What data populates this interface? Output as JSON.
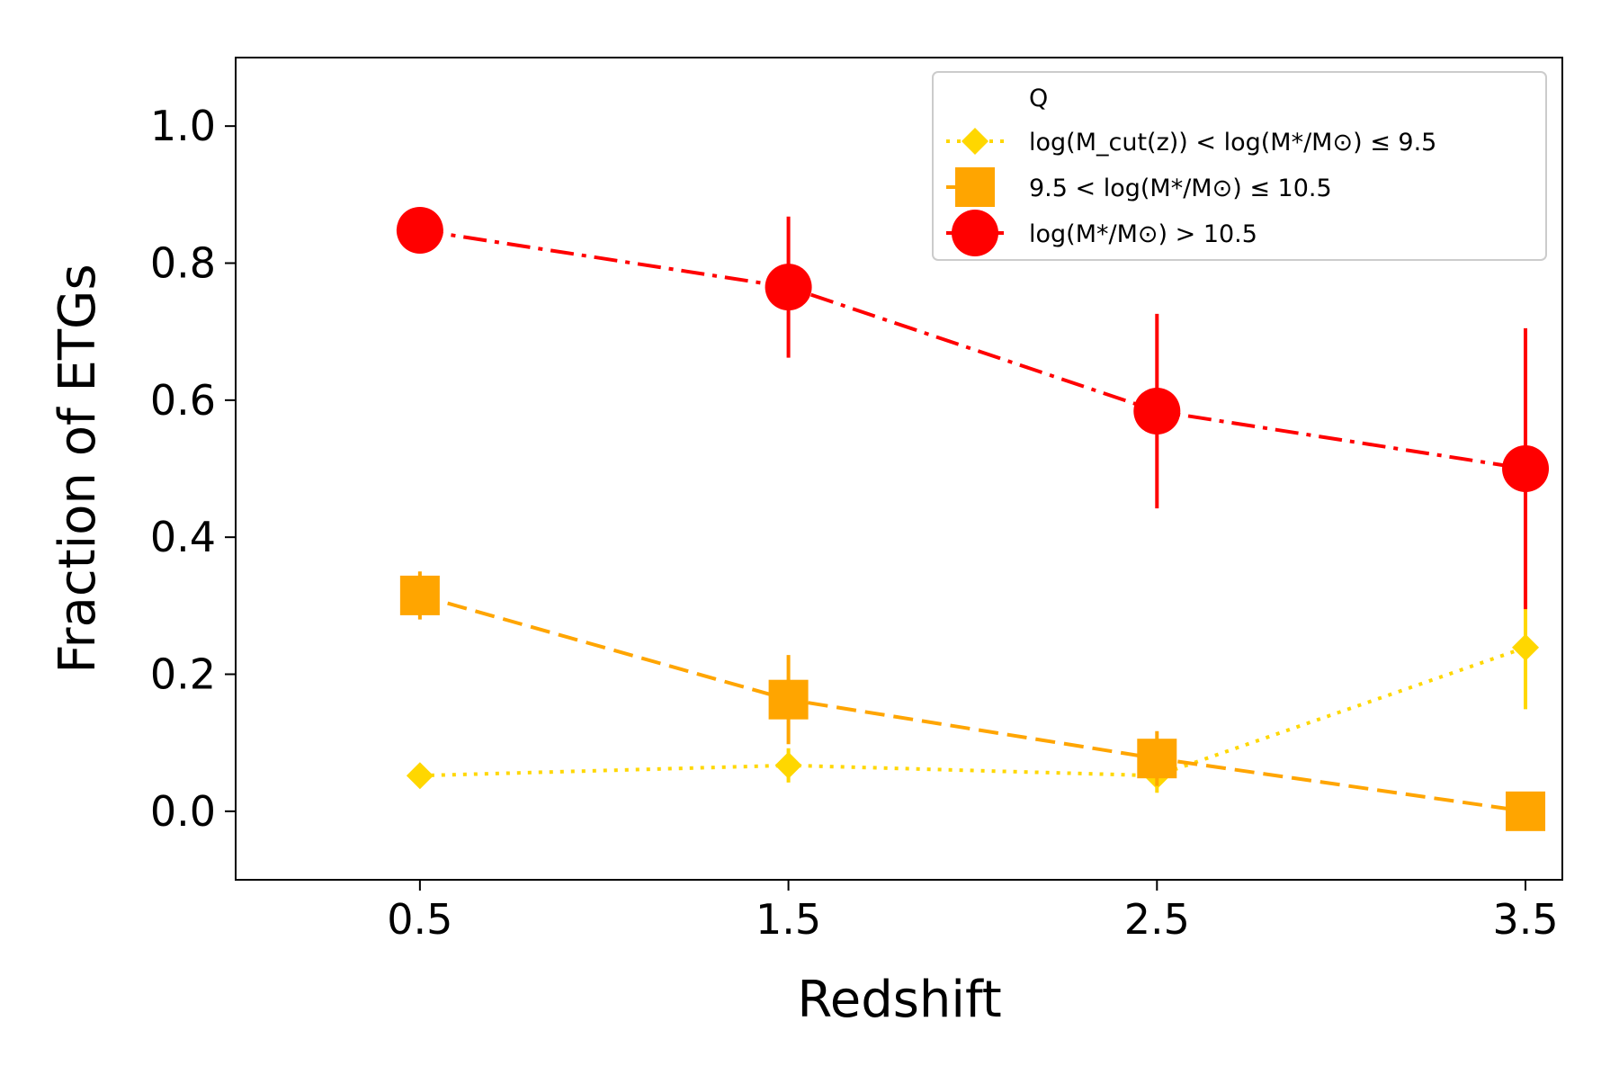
{
  "chart_data": {
    "type": "line",
    "title": "",
    "xlabel": "Redshift",
    "ylabel": "Fraction of ETGs",
    "xlim": [
      0.0,
      3.6
    ],
    "ylim": [
      -0.1,
      1.1
    ],
    "x": [
      0.5,
      1.5,
      2.5,
      3.5
    ],
    "xticks": [
      0.5,
      1.5,
      2.5,
      3.5
    ],
    "xtick_labels": [
      "0.5",
      "1.5",
      "2.5",
      "3.5"
    ],
    "yticks": [
      0.0,
      0.2,
      0.4,
      0.6,
      0.8,
      1.0
    ],
    "ytick_labels": [
      "0.0",
      "0.2",
      "0.4",
      "0.6",
      "0.8",
      "1.0"
    ],
    "grid": false,
    "legend": {
      "title": "Q",
      "placement": "top-right"
    },
    "series": [
      {
        "name": "log(M_cut(z)) < log(M*/M⊙) ≤ 9.5",
        "color": "#FFD700",
        "linestyle": "dotted",
        "marker": "diamond",
        "values": [
          0.052,
          0.067,
          0.052,
          0.239
        ],
        "errors": [
          0.01,
          0.025,
          0.025,
          0.09
        ]
      },
      {
        "name": "9.5 < log(M*/M⊙) ≤ 10.5",
        "color": "#FFA500",
        "linestyle": "dashed",
        "marker": "square",
        "values": [
          0.315,
          0.163,
          0.077,
          0.0
        ],
        "errors": [
          0.035,
          0.065,
          0.04,
          0.0
        ]
      },
      {
        "name": "log(M*/M⊙) > 10.5",
        "color": "#FF0000",
        "linestyle": "dashdot",
        "marker": "circle",
        "values": [
          0.848,
          0.765,
          0.584,
          0.5
        ],
        "errors": [
          0.0,
          0.103,
          0.142,
          0.205
        ]
      }
    ]
  }
}
